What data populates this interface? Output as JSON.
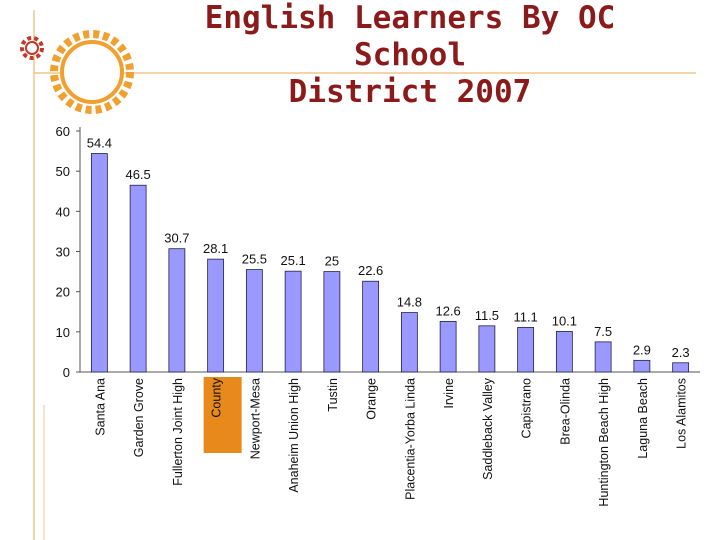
{
  "slide": {
    "title_line1": "English Learners By OC School",
    "title_line2": "District 2007",
    "accent_color": "#f0a030",
    "title_color": "#8b1a1a"
  },
  "chart_data": {
    "type": "bar",
    "title": "English Learners By OC School District 2007",
    "categories": [
      "Santa Ana",
      "Garden Grove",
      "Fullerton Joint High",
      "County",
      "Newport-Mesa",
      "Anaheim Union High",
      "Tustin",
      "Orange",
      "Placentia-Yorba Linda",
      "Irvine",
      "Saddleback Valley",
      "Capistrano",
      "Brea-Olinda",
      "Huntington Beach High",
      "Laguna Beach",
      "Los Alamitos"
    ],
    "values": [
      54.4,
      46.5,
      30.7,
      28.1,
      25.5,
      25.1,
      25,
      22.6,
      14.8,
      12.6,
      11.5,
      11.1,
      10.1,
      7.5,
      2.9,
      2.3
    ],
    "value_labels": [
      "54.4",
      "46.5",
      "30.7",
      "28.1",
      "25.5",
      "25.1",
      "25",
      "22.6",
      "14.8",
      "12.6",
      "11.5",
      "11.1",
      "10.1",
      "7.5",
      "2.9",
      "2.3"
    ],
    "highlight_category": "County",
    "highlight_color": "#e8891c",
    "bar_color": "#9999ff",
    "bar_stroke": "#222244",
    "yticks": [
      "0",
      "10",
      "20",
      "30",
      "40",
      "50",
      "60"
    ],
    "ylim": [
      0,
      60
    ],
    "xlabel": "",
    "ylabel": "",
    "grid": false,
    "legend": "none"
  }
}
